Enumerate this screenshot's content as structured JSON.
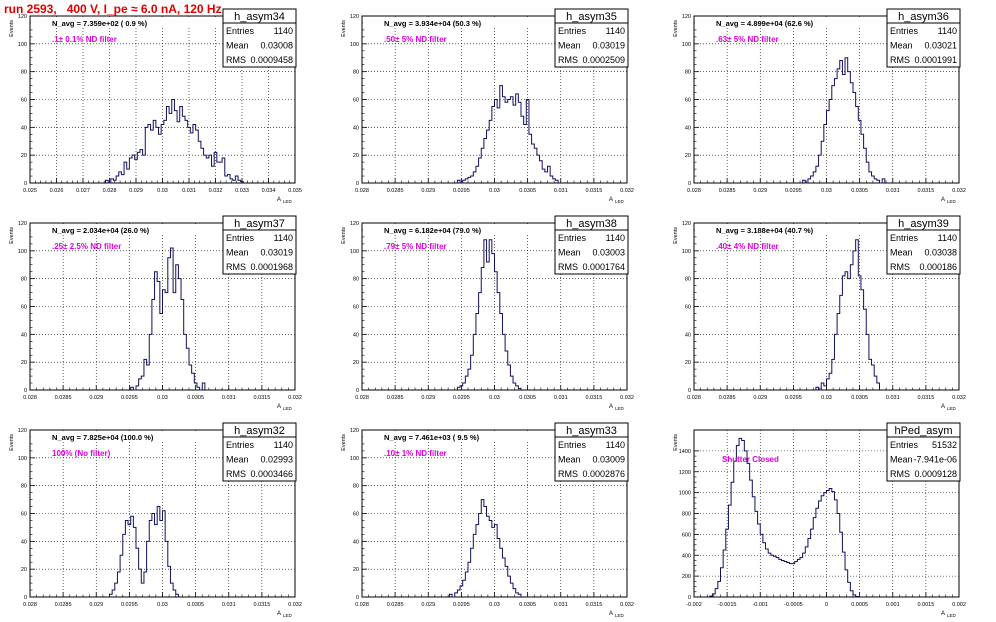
{
  "title": "run 2593,   400 V, I_pe ≈ 6.0 nA, 120 Hz",
  "y_axis_label": "Events",
  "x_axis_label": "A",
  "x_axis_sub": "LED",
  "stat_labels": {
    "entries": "Entries",
    "mean": "Mean",
    "rms": "RMS"
  },
  "colors": {
    "hist": "#101060",
    "annotation": "#e000e0",
    "title": "#e00000"
  },
  "chart_data": [
    {
      "type": "histogram",
      "name": "h_asym34",
      "entries": "1140",
      "mean": "0.03008",
      "rms": "0.0009458",
      "navg": "N_avg = 7.359e+02 ( 0.9 %)",
      "filter": ".1± 0.1% ND filter",
      "xlim": [
        0.025,
        0.035
      ],
      "ylim": [
        0,
        120
      ],
      "xticks": [
        0.025,
        0.026,
        0.027,
        0.028,
        0.029,
        0.03,
        0.031,
        0.032,
        0.033,
        0.034,
        0.035
      ],
      "xticklabels": [
        "0.025",
        "0.026",
        "0.027",
        "0.028",
        "0.029",
        "0.03",
        "0.031",
        "0.032",
        "0.033",
        "0.034",
        "0.035"
      ],
      "yticks": [
        0,
        20,
        40,
        60,
        80,
        100,
        120
      ],
      "bin_lo": 0.02785,
      "bin_width": 0.0001,
      "counts": [
        2,
        0,
        3,
        2,
        5,
        8,
        6,
        15,
        10,
        18,
        20,
        17,
        22,
        24,
        20,
        40,
        42,
        38,
        45,
        40,
        35,
        42,
        45,
        55,
        50,
        60,
        52,
        44,
        55,
        48,
        45,
        40,
        36,
        42,
        38,
        30,
        25,
        20,
        18,
        20,
        12,
        22,
        15,
        15,
        18,
        5,
        6,
        3,
        2,
        5,
        2,
        1
      ]
    },
    {
      "type": "histogram",
      "name": "h_asym35",
      "entries": "1140",
      "mean": "0.03019",
      "rms": "0.0002509",
      "navg": "N_avg = 3.934e+04 (50.3 %)",
      "filter": ".50± 5% ND filter",
      "xlim": [
        0.028,
        0.032
      ],
      "ylim": [
        0,
        120
      ],
      "xticks": [
        0.028,
        0.0285,
        0.029,
        0.0295,
        0.03,
        0.0305,
        0.031,
        0.0315,
        0.032
      ],
      "xticklabels": [
        "0.028",
        "0.0285",
        "0.029",
        "0.0295",
        "0.03",
        "0.0305",
        "0.031",
        "0.0315",
        "0.032"
      ],
      "yticks": [
        0,
        20,
        40,
        60,
        80,
        100,
        120
      ],
      "bin_lo": 0.02944,
      "bin_width": 4e-05,
      "counts": [
        2,
        0,
        2,
        3,
        4,
        5,
        8,
        12,
        18,
        25,
        32,
        38,
        45,
        55,
        60,
        54,
        70,
        62,
        58,
        60,
        62,
        56,
        64,
        58,
        48,
        42,
        60,
        35,
        28,
        25,
        20,
        16,
        10,
        8,
        12,
        5,
        3,
        2
      ]
    },
    {
      "type": "histogram",
      "name": "h_asym36",
      "entries": "1140",
      "mean": "0.03021",
      "rms": "0.0001991",
      "navg": "N_avg = 4.899e+04 (62.6 %)",
      "filter": ".63± 5% ND filter",
      "xlim": [
        0.028,
        0.032
      ],
      "ylim": [
        0,
        120
      ],
      "xticks": [
        0.028,
        0.0285,
        0.029,
        0.0295,
        0.03,
        0.0305,
        0.031,
        0.0315,
        0.032
      ],
      "xticklabels": [
        "0.028",
        "0.0285",
        "0.029",
        "0.0295",
        "0.03",
        "0.0305",
        "0.031",
        "0.0315",
        "0.032"
      ],
      "yticks": [
        0,
        20,
        40,
        60,
        80,
        100,
        120
      ],
      "bin_lo": 0.02964,
      "bin_width": 4e-05,
      "counts": [
        2,
        0,
        3,
        5,
        8,
        12,
        20,
        30,
        42,
        52,
        60,
        70,
        75,
        82,
        88,
        78,
        90,
        80,
        72,
        65,
        55,
        45,
        35,
        25,
        15,
        8,
        5,
        3,
        2,
        0,
        3
      ]
    },
    {
      "type": "histogram",
      "name": "h_asym37",
      "entries": "1140",
      "mean": "0.03019",
      "rms": "0.0001968",
      "navg": "N_avg = 2.034e+04 (26.0 %)",
      "filter": ".25± 2.5% ND filter",
      "xlim": [
        0.028,
        0.032
      ],
      "ylim": [
        0,
        120
      ],
      "xticks": [
        0.028,
        0.0285,
        0.029,
        0.0295,
        0.03,
        0.0305,
        0.031,
        0.0315,
        0.032
      ],
      "xticklabels": [
        "0.028",
        "0.0285",
        "0.029",
        "0.0295",
        "0.03",
        "0.0305",
        "0.031",
        "0.0315",
        "0.032"
      ],
      "yticks": [
        0,
        20,
        40,
        60,
        80,
        100,
        120
      ],
      "bin_lo": 0.02952,
      "bin_width": 4e-05,
      "counts": [
        2,
        0,
        3,
        8,
        10,
        22,
        18,
        40,
        65,
        85,
        78,
        55,
        72,
        70,
        95,
        102,
        70,
        90,
        80,
        65,
        40,
        30,
        18,
        12,
        5,
        2,
        0,
        5
      ]
    },
    {
      "type": "histogram",
      "name": "h_asym38",
      "entries": "1140",
      "mean": "0.03003",
      "rms": "0.0001764",
      "navg": "N_avg = 6.182e+04 (79.0 %)",
      "filter": ".79± 5% ND filter",
      "xlim": [
        0.028,
        0.032
      ],
      "ylim": [
        0,
        120
      ],
      "xticks": [
        0.028,
        0.0285,
        0.029,
        0.0295,
        0.03,
        0.0305,
        0.031,
        0.0315,
        0.032
      ],
      "xticklabels": [
        "0.028",
        "0.0285",
        "0.029",
        "0.0295",
        "0.03",
        "0.0305",
        "0.031",
        "0.0315",
        "0.032"
      ],
      "yticks": [
        0,
        20,
        40,
        60,
        80,
        100,
        120
      ],
      "bin_lo": 0.02944,
      "bin_width": 4e-05,
      "counts": [
        2,
        3,
        5,
        10,
        15,
        25,
        40,
        55,
        70,
        88,
        108,
        92,
        108,
        98,
        85,
        70,
        55,
        40,
        28,
        18,
        10,
        5,
        3,
        1
      ]
    },
    {
      "type": "histogram",
      "name": "h_asym39",
      "entries": "1140",
      "mean": "0.03038",
      "rms": "0.000186",
      "navg": "N_avg = 3.188e+04 (40.7 %)",
      "filter": ".40± 4% ND filter",
      "xlim": [
        0.028,
        0.032
      ],
      "ylim": [
        0,
        120
      ],
      "xticks": [
        0.028,
        0.0285,
        0.029,
        0.0295,
        0.03,
        0.0305,
        0.031,
        0.0315,
        0.032
      ],
      "xticklabels": [
        "0.028",
        "0.0285",
        "0.029",
        "0.0295",
        "0.03",
        "0.0305",
        "0.031",
        "0.0315",
        "0.032"
      ],
      "yticks": [
        0,
        20,
        40,
        60,
        80,
        100,
        120
      ],
      "bin_lo": 0.02984,
      "bin_width": 4e-05,
      "counts": [
        2,
        0,
        5,
        3,
        8,
        12,
        22,
        40,
        55,
        68,
        82,
        85,
        80,
        90,
        100,
        108,
        82,
        72,
        58,
        40,
        22,
        18,
        10,
        5
      ]
    },
    {
      "type": "histogram",
      "name": "h_asym32",
      "entries": "1140",
      "mean": "0.02993",
      "rms": "0.0003466",
      "navg": "N_avg = 7.825e+04 (100.0 %)",
      "filter": "100% (No filter)",
      "xlim": [
        0.028,
        0.032
      ],
      "ylim": [
        0,
        120
      ],
      "xticks": [
        0.028,
        0.0285,
        0.029,
        0.0295,
        0.03,
        0.0305,
        0.031,
        0.0315,
        0.032
      ],
      "xticklabels": [
        "0.028",
        "0.0285",
        "0.029",
        "0.0295",
        "0.03",
        "0.0305",
        "0.031",
        "0.0315",
        "0.032"
      ],
      "yticks": [
        0,
        20,
        40,
        60,
        80,
        100,
        120
      ],
      "bin_lo": 0.0292,
      "bin_width": 4e-05,
      "counts": [
        2,
        5,
        10,
        18,
        30,
        45,
        55,
        52,
        58,
        50,
        35,
        20,
        10,
        18,
        40,
        55,
        60,
        52,
        65,
        55,
        62,
        40,
        22,
        10,
        5,
        2
      ]
    },
    {
      "type": "histogram",
      "name": "h_asym33",
      "entries": "1140",
      "mean": "0.03009",
      "rms": "0.0002876",
      "navg": "N_avg = 7.461e+03 ( 9.5 %)",
      "filter": ".10± 1% ND filter",
      "xlim": [
        0.028,
        0.032
      ],
      "ylim": [
        0,
        120
      ],
      "xticks": [
        0.028,
        0.0285,
        0.029,
        0.0295,
        0.03,
        0.0305,
        0.031,
        0.0315,
        0.032
      ],
      "xticklabels": [
        "0.028",
        "0.0285",
        "0.029",
        "0.0295",
        "0.03",
        "0.0305",
        "0.031",
        "0.0315",
        "0.032"
      ],
      "yticks": [
        0,
        20,
        40,
        60,
        80,
        100,
        120
      ],
      "bin_lo": 0.02932,
      "bin_width": 4e-05,
      "counts": [
        2,
        0,
        3,
        5,
        8,
        12,
        18,
        25,
        35,
        45,
        52,
        60,
        70,
        65,
        58,
        55,
        50,
        52,
        42,
        35,
        28,
        22,
        15,
        10,
        6,
        3,
        2
      ]
    },
    {
      "type": "histogram",
      "name": "hPed_asym",
      "entries": "51532",
      "mean": "-7.941e-06",
      "rms": "0.0009128",
      "navg": "",
      "filter": "Shutter Closed",
      "xlim": [
        -0.002,
        0.002
      ],
      "ylim": [
        0,
        1600
      ],
      "xticks": [
        -0.002,
        -0.0015,
        -0.001,
        -0.0005,
        0,
        0.0005,
        0.001,
        0.0015,
        0.002
      ],
      "xticklabels": [
        "-0.002",
        "-0.0015",
        "-0.001",
        "-0.0005",
        "0",
        "0.0005",
        "0.001",
        "0.0015",
        "0.002"
      ],
      "yticks": [
        0,
        200,
        400,
        600,
        800,
        1000,
        1200,
        1400
      ],
      "bin_lo": -0.00176,
      "bin_width": 4e-05,
      "counts": [
        10,
        30,
        80,
        150,
        280,
        450,
        650,
        880,
        1100,
        1300,
        1450,
        1520,
        1500,
        1400,
        1280,
        1120,
        960,
        820,
        700,
        600,
        520,
        460,
        420,
        400,
        390,
        380,
        360,
        350,
        340,
        330,
        320,
        320,
        340,
        360,
        380,
        420,
        480,
        560,
        650,
        760,
        850,
        920,
        970,
        1000,
        1020,
        1040,
        1010,
        930,
        800,
        620,
        430,
        260,
        140,
        60,
        20,
        5
      ]
    }
  ]
}
